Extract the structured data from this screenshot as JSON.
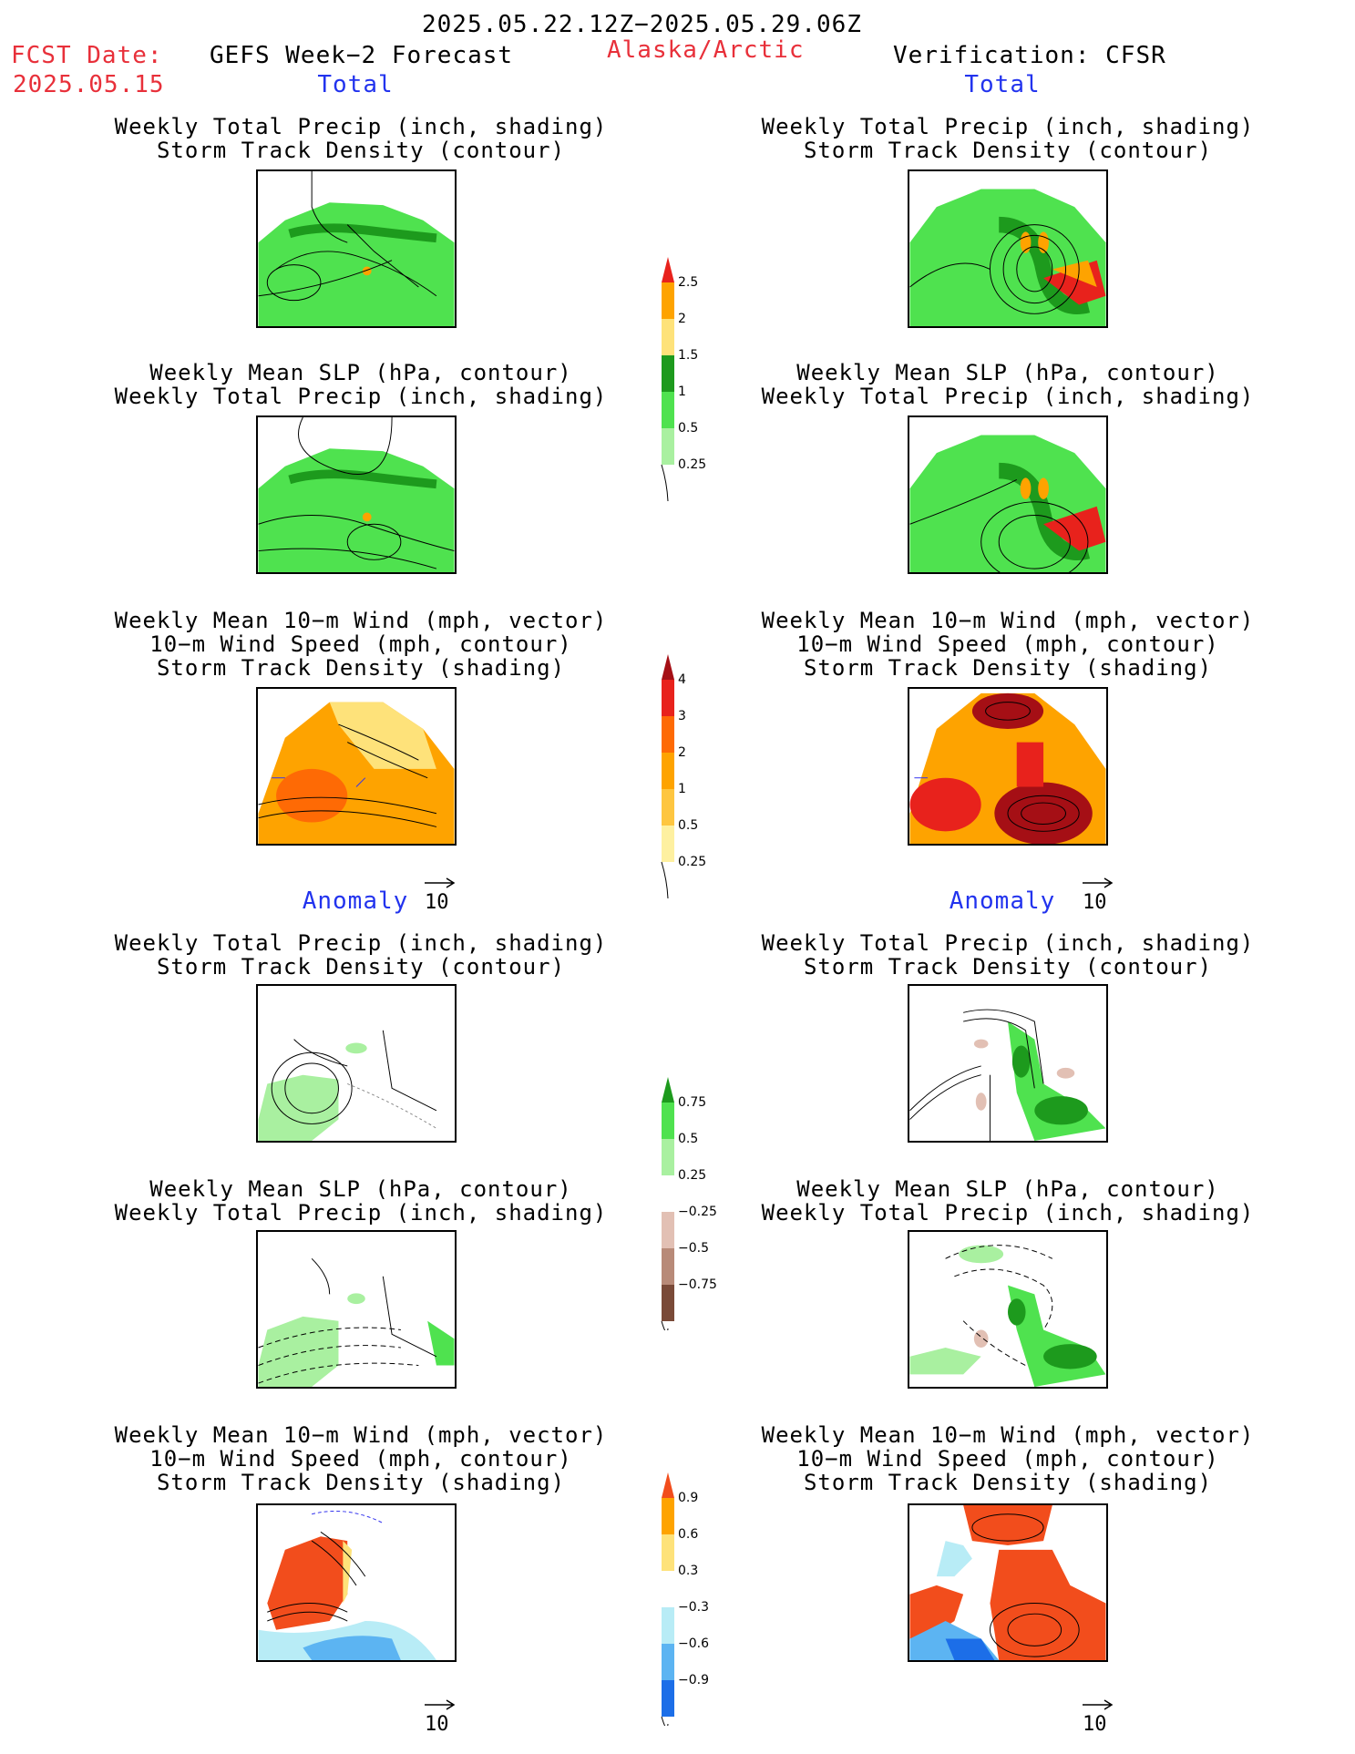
{
  "header": {
    "period": "2025.05.22.12Z−2025.05.29.06Z",
    "fcst_label": "FCST Date:",
    "fcst_date": "2025.05.15",
    "model": "GEFS Week−2 Forecast",
    "region": "Alaska/Arctic",
    "verification": "Verification: CFSR"
  },
  "sections": {
    "total": "Total",
    "anomaly": "Anomaly"
  },
  "titles": {
    "precip_storm": [
      "Weekly Total Precip (inch, shading)",
      "Storm Track Density (contour)"
    ],
    "slp_precip": [
      "Weekly Mean SLP (hPa, contour)",
      "Weekly Total Precip (inch, shading)"
    ],
    "wind_storm": [
      "Weekly Mean 10−m Wind (mph, vector)",
      "10−m Wind Speed (mph, contour)",
      "Storm Track Density (shading)"
    ]
  },
  "vector_ref": "10",
  "colorbars": {
    "total_precip": {
      "labels": [
        "2.5",
        "2",
        "1.5",
        "1",
        "0.5",
        "0.25"
      ],
      "colors": [
        "#e8221c",
        "#fea300",
        "#fee27a",
        "#1d9a1d",
        "#4fe24f",
        "#a9f0a0"
      ]
    },
    "total_storm": {
      "labels": [
        "4",
        "3",
        "2",
        "1",
        "0.5",
        "0.25"
      ],
      "colors": [
        "#a50f15",
        "#e8221c",
        "#fe6a05",
        "#fea300",
        "#fec640",
        "#fef0a0"
      ]
    },
    "anom_precip": {
      "labels": [
        "0.75",
        "0.5",
        "0.25",
        "−0.25",
        "−0.5",
        "−0.75"
      ],
      "colors": [
        "#1d9a1d",
        "#4fe24f",
        "#a9f0a0",
        "#ffffff",
        "#e2c0b4",
        "#b88a78",
        "#7a4a38"
      ]
    },
    "anom_storm": {
      "labels": [
        "0.9",
        "0.6",
        "0.3",
        "−0.3",
        "−0.6",
        "−0.9"
      ],
      "colors": [
        "#f24d1c",
        "#fea300",
        "#fee27a",
        "#ffffff",
        "#b8ecf6",
        "#5cb4f2",
        "#1c6ee8"
      ]
    }
  },
  "colors": {
    "red_text": "#e8303a",
    "blue_text": "#2233ee"
  }
}
